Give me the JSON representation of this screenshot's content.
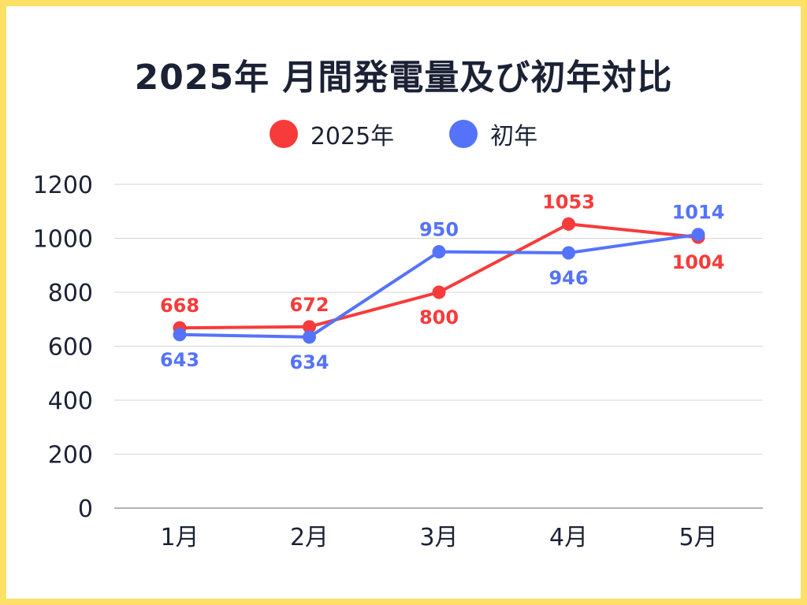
{
  "chart_data": {
    "type": "line",
    "title": "2025年 月間発電量及び初年対比",
    "categories": [
      "1月",
      "2月",
      "3月",
      "4月",
      "5月"
    ],
    "series": [
      {
        "name": "2025年",
        "color": "#f73b3b",
        "values": [
          668,
          672,
          800,
          1053,
          1004
        ]
      },
      {
        "name": "初年",
        "color": "#5573fa",
        "values": [
          643,
          634,
          950,
          946,
          1014
        ]
      }
    ],
    "ylim": [
      0,
      1200
    ],
    "yticks": [
      0,
      200,
      400,
      600,
      800,
      1000,
      1200
    ],
    "xlabel": "",
    "ylabel": "",
    "grid": true,
    "legend": "top-center"
  },
  "colors": {
    "border": "#ffe066",
    "text": "#1c2235",
    "grid": "#d6d6d6"
  }
}
